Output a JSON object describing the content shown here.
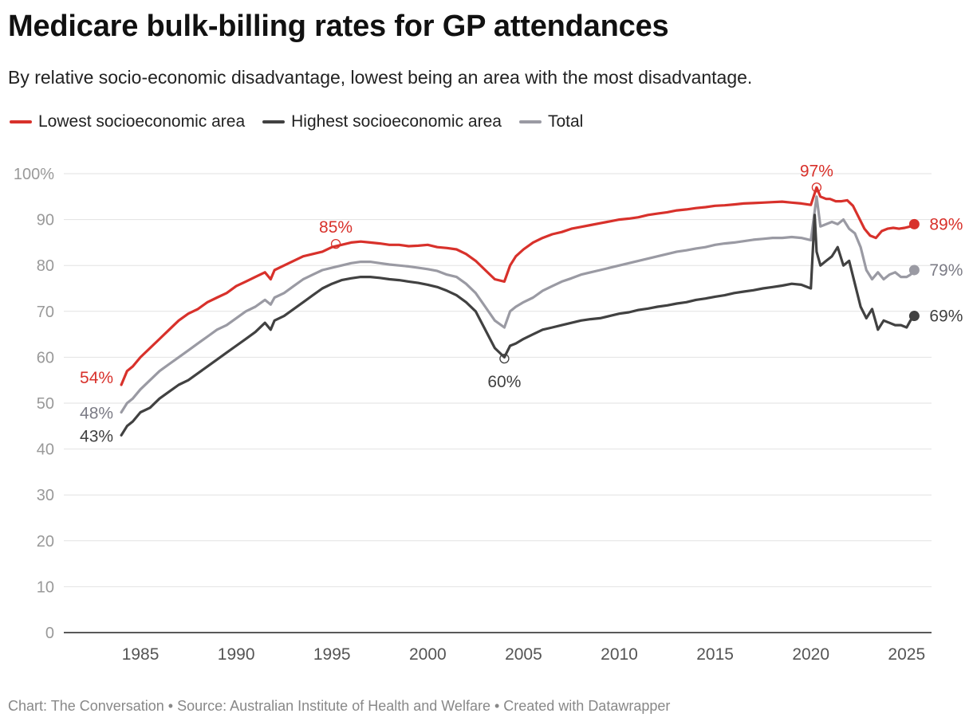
{
  "title": "Medicare bulk-billing rates for GP attendances",
  "subtitle": "By relative socio-economic disadvantage, lowest being an area with the most disadvantage.",
  "footer": "Chart: The Conversation • Source: Australian Institute of Health and Welfare • Created with Datawrapper",
  "colors": {
    "lowest": "#d8312b",
    "highest": "#414141",
    "total": "#9a9aa3",
    "grid": "#e2e2e2",
    "axis": "#222222",
    "tick": "#999999"
  },
  "chart_data": {
    "type": "line",
    "title": "Medicare bulk-billing rates for GP attendances",
    "xlabel": "",
    "ylabel": "",
    "xlim": [
      1981.0,
      2026.3
    ],
    "ylim": [
      0,
      100
    ],
    "y_ticks": [
      0,
      10,
      20,
      30,
      40,
      50,
      60,
      70,
      80,
      90,
      100
    ],
    "y_tick_labels": [
      "0",
      "10",
      "20",
      "30",
      "40",
      "50",
      "60",
      "70",
      "80",
      "90",
      "100%"
    ],
    "x_ticks": [
      1985,
      1990,
      1995,
      2000,
      2005,
      2010,
      2015,
      2020,
      2025
    ],
    "x_tick_labels": [
      "1985",
      "1990",
      "1995",
      "2000",
      "2005",
      "2010",
      "2015",
      "2020",
      "2025"
    ],
    "series": [
      {
        "name": "Lowest socioeconomic area",
        "key": "lowest",
        "x": [
          1984.0,
          1984.3,
          1984.6,
          1985.0,
          1985.5,
          1986.0,
          1986.5,
          1987.0,
          1987.5,
          1988.0,
          1988.5,
          1989.0,
          1989.5,
          1990.0,
          1990.5,
          1991.0,
          1991.5,
          1991.8,
          1992.0,
          1992.5,
          1993.0,
          1993.5,
          1994.0,
          1994.5,
          1995.0,
          1995.5,
          1996.0,
          1996.5,
          1997.0,
          1997.5,
          1998.0,
          1998.5,
          1999.0,
          1999.5,
          2000.0,
          2000.5,
          2001.0,
          2001.5,
          2002.0,
          2002.5,
          2003.0,
          2003.5,
          2004.0,
          2004.3,
          2004.6,
          2005.0,
          2005.5,
          2006.0,
          2006.5,
          2007.0,
          2007.5,
          2008.0,
          2008.5,
          2009.0,
          2009.5,
          2010.0,
          2010.5,
          2011.0,
          2011.5,
          2012.0,
          2012.5,
          2013.0,
          2013.5,
          2014.0,
          2014.5,
          2015.0,
          2015.5,
          2016.0,
          2016.5,
          2017.0,
          2017.5,
          2018.0,
          2018.5,
          2019.0,
          2019.5,
          2020.0,
          2020.3,
          2020.5,
          2020.8,
          2021.0,
          2021.3,
          2021.6,
          2021.9,
          2022.2,
          2022.5,
          2022.8,
          2023.1,
          2023.4,
          2023.7,
          2024.0,
          2024.3,
          2024.6,
          2024.9,
          2025.2,
          2025.4
        ],
        "values": [
          54,
          57,
          58,
          60,
          62,
          64,
          66,
          68,
          69.5,
          70.5,
          72,
          73,
          74,
          75.5,
          76.5,
          77.5,
          78.5,
          77,
          79,
          80,
          81,
          82,
          82.5,
          83,
          84,
          84.5,
          85,
          85.2,
          85,
          84.8,
          84.5,
          84.5,
          84.2,
          84.3,
          84.5,
          84,
          83.8,
          83.5,
          82.5,
          81,
          79,
          77,
          76.5,
          80,
          82,
          83.5,
          85,
          86,
          86.8,
          87.3,
          88,
          88.4,
          88.8,
          89.2,
          89.6,
          90,
          90.2,
          90.5,
          91,
          91.3,
          91.6,
          92,
          92.2,
          92.5,
          92.7,
          93,
          93.1,
          93.3,
          93.5,
          93.6,
          93.7,
          93.8,
          93.9,
          93.7,
          93.5,
          93.2,
          97,
          95,
          94.5,
          94.5,
          94,
          94,
          94.2,
          93,
          90.5,
          88,
          86.5,
          86,
          87.5,
          88,
          88.2,
          88,
          88.2,
          88.5,
          89
        ]
      },
      {
        "name": "Highest socioeconomic area",
        "key": "highest",
        "x": [
          1984.0,
          1984.3,
          1984.6,
          1985.0,
          1985.5,
          1986.0,
          1986.5,
          1987.0,
          1987.5,
          1988.0,
          1988.5,
          1989.0,
          1989.5,
          1990.0,
          1990.5,
          1991.0,
          1991.5,
          1991.8,
          1992.0,
          1992.5,
          1993.0,
          1993.5,
          1994.0,
          1994.5,
          1995.0,
          1995.5,
          1996.0,
          1996.5,
          1997.0,
          1997.5,
          1998.0,
          1998.5,
          1999.0,
          1999.5,
          2000.0,
          2000.5,
          2001.0,
          2001.5,
          2002.0,
          2002.5,
          2003.0,
          2003.5,
          2004.0,
          2004.3,
          2004.6,
          2005.0,
          2005.5,
          2006.0,
          2006.5,
          2007.0,
          2007.5,
          2008.0,
          2008.5,
          2009.0,
          2009.5,
          2010.0,
          2010.5,
          2011.0,
          2011.5,
          2012.0,
          2012.5,
          2013.0,
          2013.5,
          2014.0,
          2014.5,
          2015.0,
          2015.5,
          2016.0,
          2016.5,
          2017.0,
          2017.5,
          2018.0,
          2018.5,
          2019.0,
          2019.5,
          2020.0,
          2020.2,
          2020.3,
          2020.5,
          2020.8,
          2021.1,
          2021.4,
          2021.7,
          2022.0,
          2022.3,
          2022.6,
          2022.9,
          2023.2,
          2023.5,
          2023.8,
          2024.1,
          2024.4,
          2024.7,
          2025.0,
          2025.2,
          2025.4
        ],
        "values": [
          43,
          45,
          46,
          48,
          49,
          51,
          52.5,
          54,
          55,
          56.5,
          58,
          59.5,
          61,
          62.5,
          64,
          65.5,
          67.5,
          66,
          68,
          69,
          70.5,
          72,
          73.5,
          75,
          76,
          76.8,
          77.2,
          77.5,
          77.5,
          77.3,
          77,
          76.8,
          76.5,
          76.2,
          75.8,
          75.3,
          74.5,
          73.5,
          72,
          70,
          66,
          62,
          60,
          62.5,
          63,
          64,
          65,
          66,
          66.5,
          67,
          67.5,
          68,
          68.3,
          68.5,
          69,
          69.5,
          69.8,
          70.3,
          70.6,
          71,
          71.3,
          71.7,
          72,
          72.5,
          72.8,
          73.2,
          73.5,
          74,
          74.3,
          74.6,
          75,
          75.3,
          75.6,
          76,
          75.8,
          75,
          91,
          83,
          80,
          81,
          82,
          84,
          80,
          81,
          76,
          71,
          68.5,
          70.5,
          66,
          68,
          67.5,
          67,
          67,
          66.5,
          68,
          69
        ]
      },
      {
        "name": "Total",
        "key": "total",
        "x": [
          1984.0,
          1984.3,
          1984.6,
          1985.0,
          1985.5,
          1986.0,
          1986.5,
          1987.0,
          1987.5,
          1988.0,
          1988.5,
          1989.0,
          1989.5,
          1990.0,
          1990.5,
          1991.0,
          1991.5,
          1991.8,
          1992.0,
          1992.5,
          1993.0,
          1993.5,
          1994.0,
          1994.5,
          1995.0,
          1995.5,
          1996.0,
          1996.5,
          1997.0,
          1997.5,
          1998.0,
          1998.5,
          1999.0,
          1999.5,
          2000.0,
          2000.5,
          2001.0,
          2001.5,
          2002.0,
          2002.5,
          2003.0,
          2003.5,
          2004.0,
          2004.3,
          2004.6,
          2005.0,
          2005.5,
          2006.0,
          2006.5,
          2007.0,
          2007.5,
          2008.0,
          2008.5,
          2009.0,
          2009.5,
          2010.0,
          2010.5,
          2011.0,
          2011.5,
          2012.0,
          2012.5,
          2013.0,
          2013.5,
          2014.0,
          2014.5,
          2015.0,
          2015.5,
          2016.0,
          2016.5,
          2017.0,
          2017.5,
          2018.0,
          2018.5,
          2019.0,
          2019.5,
          2020.0,
          2020.3,
          2020.5,
          2020.8,
          2021.1,
          2021.4,
          2021.7,
          2022.0,
          2022.3,
          2022.6,
          2022.9,
          2023.2,
          2023.5,
          2023.8,
          2024.1,
          2024.4,
          2024.7,
          2025.0,
          2025.2,
          2025.4
        ],
        "values": [
          48,
          50,
          51,
          53,
          55,
          57,
          58.5,
          60,
          61.5,
          63,
          64.5,
          66,
          67,
          68.5,
          70,
          71,
          72.5,
          71.5,
          73,
          74,
          75.5,
          77,
          78,
          79,
          79.5,
          80,
          80.5,
          80.8,
          80.8,
          80.5,
          80.2,
          80,
          79.8,
          79.5,
          79.2,
          78.8,
          78,
          77.5,
          76,
          74,
          71,
          68,
          66.5,
          70,
          71,
          72,
          73,
          74.5,
          75.5,
          76.5,
          77.2,
          78,
          78.5,
          79,
          79.5,
          80,
          80.5,
          81,
          81.5,
          82,
          82.5,
          83,
          83.3,
          83.7,
          84,
          84.5,
          84.8,
          85,
          85.3,
          85.6,
          85.8,
          86,
          86,
          86.2,
          86,
          85.5,
          95,
          88.5,
          89,
          89.5,
          89,
          90,
          88,
          87,
          84,
          79,
          77,
          78.5,
          77,
          78,
          78.5,
          77.5,
          77.5,
          78,
          79
        ]
      }
    ],
    "annotations": [
      {
        "series": "lowest",
        "x": 1984.0,
        "y": 54,
        "text": "54%",
        "style": "start"
      },
      {
        "series": "total",
        "x": 1984.0,
        "y": 48,
        "text": "48%",
        "style": "start"
      },
      {
        "series": "highest",
        "x": 1984.0,
        "y": 43,
        "text": "43%",
        "style": "start"
      },
      {
        "series": "lowest",
        "x": 1995.2,
        "y": 84.7,
        "text": "85%",
        "style": "above-ring"
      },
      {
        "series": "highest",
        "x": 2004.0,
        "y": 59.7,
        "text": "60%",
        "style": "below-ring"
      },
      {
        "series": "lowest",
        "x": 2020.3,
        "y": 97,
        "text": "97%",
        "style": "above-ring"
      },
      {
        "series": "lowest",
        "x": 2025.4,
        "y": 89,
        "text": "89%",
        "style": "end"
      },
      {
        "series": "total",
        "x": 2025.4,
        "y": 79,
        "text": "79%",
        "style": "end"
      },
      {
        "series": "highest",
        "x": 2025.4,
        "y": 69,
        "text": "69%",
        "style": "end"
      }
    ]
  }
}
